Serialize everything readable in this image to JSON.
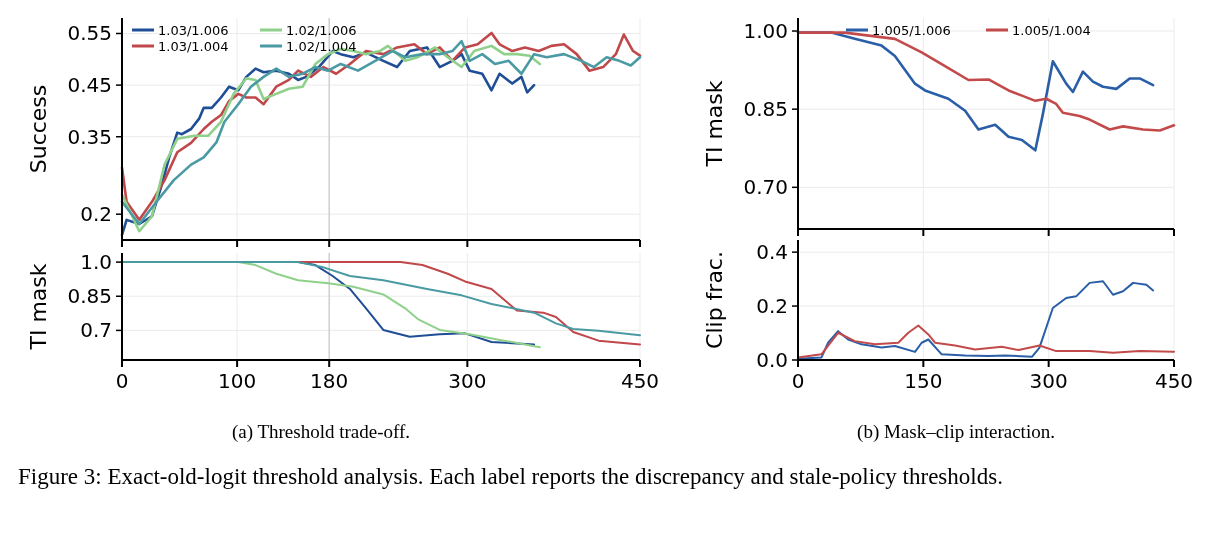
{
  "chart_data": [
    {
      "type": "line",
      "ylabel": "Success",
      "xlim": [
        0,
        450
      ],
      "xticks": [
        0,
        100,
        180,
        300,
        450
      ],
      "ylim": [
        0.15,
        0.58
      ],
      "yticks": [
        0.2,
        0.35,
        0.45,
        0.55
      ],
      "grid": true,
      "legend": "top left",
      "tick_labels": "y",
      "ref_lines": [
        {
          "axis": "x",
          "value": 180,
          "color": "#c8c8c8"
        }
      ],
      "series": [
        {
          "name": "1.03/1.006",
          "color": "#1f4e96",
          "x": [
            0,
            4,
            15,
            26,
            34,
            41,
            48,
            52,
            60,
            67,
            71,
            78,
            86,
            93,
            101,
            108,
            116,
            123,
            134,
            145,
            153,
            160,
            171,
            183,
            190,
            201,
            212,
            227,
            239,
            250,
            265,
            276,
            287,
            295,
            302,
            313,
            321,
            328,
            339,
            347,
            352,
            358
          ],
          "values": [
            0.16,
            0.189,
            0.181,
            0.196,
            0.253,
            0.31,
            0.358,
            0.355,
            0.365,
            0.385,
            0.406,
            0.406,
            0.426,
            0.447,
            0.44,
            0.466,
            0.482,
            0.475,
            0.478,
            0.472,
            0.46,
            0.466,
            0.485,
            0.516,
            0.51,
            0.504,
            0.513,
            0.497,
            0.485,
            0.516,
            0.523,
            0.485,
            0.497,
            0.51,
            0.478,
            0.472,
            0.44,
            0.472,
            0.453,
            0.466,
            0.436,
            0.45
          ]
        },
        {
          "name": "1.03/1.004",
          "color": "#c0474a",
          "x": [
            0,
            4,
            15,
            26,
            37,
            48,
            60,
            71,
            78,
            86,
            93,
            101,
            108,
            116,
            123,
            134,
            145,
            153,
            164,
            175,
            186,
            198,
            212,
            227,
            239,
            254,
            265,
            276,
            287,
            298,
            309,
            321,
            328,
            339,
            350,
            362,
            373,
            384,
            395,
            406,
            418,
            429,
            436,
            444,
            450
          ],
          "values": [
            0.29,
            0.224,
            0.189,
            0.224,
            0.266,
            0.32,
            0.338,
            0.365,
            0.379,
            0.392,
            0.419,
            0.433,
            0.426,
            0.426,
            0.413,
            0.447,
            0.46,
            0.478,
            0.466,
            0.485,
            0.472,
            0.491,
            0.516,
            0.51,
            0.523,
            0.529,
            0.51,
            0.523,
            0.497,
            0.523,
            0.529,
            0.551,
            0.529,
            0.516,
            0.523,
            0.516,
            0.526,
            0.529,
            0.51,
            0.478,
            0.485,
            0.51,
            0.548,
            0.516,
            0.507
          ]
        },
        {
          "name": "1.02/1.006",
          "color": "#8fd18a",
          "x": [
            0,
            15,
            26,
            37,
            48,
            63,
            75,
            86,
            97,
            108,
            116,
            123,
            134,
            145,
            157,
            168,
            179,
            190,
            201,
            212,
            224,
            231,
            246,
            257,
            272,
            283,
            295,
            306,
            321,
            332,
            343,
            354,
            363
          ],
          "values": [
            0.238,
            0.167,
            0.196,
            0.296,
            0.346,
            0.352,
            0.352,
            0.379,
            0.433,
            0.463,
            0.46,
            0.423,
            0.433,
            0.443,
            0.447,
            0.491,
            0.51,
            0.52,
            0.516,
            0.51,
            0.516,
            0.526,
            0.497,
            0.504,
            0.523,
            0.504,
            0.485,
            0.516,
            0.526,
            0.51,
            0.51,
            0.507,
            0.491
          ]
        },
        {
          "name": "1.02/1.004",
          "color": "#4a9aa3",
          "x": [
            0,
            15,
            30,
            45,
            60,
            71,
            82,
            89,
            101,
            112,
            123,
            134,
            145,
            157,
            168,
            179,
            190,
            205,
            220,
            235,
            246,
            261,
            276,
            287,
            295,
            302,
            313,
            324,
            336,
            347,
            358,
            369,
            384,
            399,
            410,
            421,
            432,
            442,
            450
          ],
          "values": [
            0.224,
            0.181,
            0.224,
            0.266,
            0.296,
            0.31,
            0.339,
            0.379,
            0.413,
            0.447,
            0.466,
            0.482,
            0.466,
            0.472,
            0.485,
            0.478,
            0.491,
            0.478,
            0.497,
            0.516,
            0.504,
            0.51,
            0.51,
            0.516,
            0.535,
            0.497,
            0.51,
            0.491,
            0.497,
            0.472,
            0.51,
            0.504,
            0.51,
            0.497,
            0.485,
            0.504,
            0.497,
            0.488,
            0.504
          ]
        }
      ]
    },
    {
      "type": "line",
      "ylabel": "TI mask",
      "xlim": [
        0,
        450
      ],
      "xticks": [
        0,
        100,
        180,
        300,
        450
      ],
      "ylim": [
        0.57,
        1.04
      ],
      "yticks": [
        {
          "value": 1.0,
          "label": "1.0"
        },
        0.85,
        0.7
      ],
      "grid": true,
      "ref_lines": [
        {
          "axis": "x",
          "value": 180,
          "color": "#c8c8c8"
        }
      ],
      "annotations": [
        "(a) Threshold trade-off."
      ],
      "series": [
        {
          "color": "#1f4e96",
          "x": [
            0,
            153,
            168,
            183,
            198,
            212,
            227,
            250,
            276,
            298,
            321,
            358
          ],
          "values": [
            1.0,
            1.0,
            0.987,
            0.939,
            0.882,
            0.797,
            0.702,
            0.672,
            0.683,
            0.687,
            0.649,
            0.638
          ]
        },
        {
          "color": "#c0474a",
          "x": [
            0,
            242,
            261,
            283,
            298,
            321,
            332,
            343,
            366,
            377,
            392,
            414,
            450
          ],
          "values": [
            1.0,
            1.0,
            0.987,
            0.949,
            0.915,
            0.882,
            0.835,
            0.787,
            0.778,
            0.759,
            0.693,
            0.655,
            0.638
          ]
        },
        {
          "color": "#8fd18a",
          "x": [
            0,
            101,
            116,
            134,
            153,
            179,
            201,
            227,
            246,
            257,
            276,
            302,
            332,
            363
          ],
          "values": [
            1.0,
            1.0,
            0.987,
            0.949,
            0.92,
            0.907,
            0.892,
            0.858,
            0.797,
            0.75,
            0.702,
            0.683,
            0.655,
            0.626
          ]
        },
        {
          "color": "#4a9aa3",
          "x": [
            0,
            153,
            175,
            198,
            227,
            265,
            295,
            321,
            358,
            377,
            392,
            414,
            450
          ],
          "values": [
            1.0,
            1.0,
            0.977,
            0.939,
            0.92,
            0.882,
            0.854,
            0.816,
            0.778,
            0.731,
            0.706,
            0.698,
            0.679
          ]
        }
      ]
    },
    {
      "type": "line",
      "ylabel": "TI mask",
      "xlim": [
        0,
        450
      ],
      "xticks": [
        0,
        150,
        300,
        450
      ],
      "ylim": [
        0.62,
        1.025
      ],
      "yticks": [
        {
          "value": 1.0,
          "label": "1.00"
        },
        0.85,
        {
          "value": 0.7,
          "label": "0.70"
        }
      ],
      "grid": true,
      "legend": "top",
      "tick_labels": "y",
      "series": [
        {
          "name": "1.005/1.006",
          "color": "#2a5fa8",
          "x": [
            0,
            40,
            68,
            100,
            116,
            140,
            152,
            180,
            200,
            216,
            236,
            252,
            268,
            284,
            293,
            305,
            321,
            329,
            341,
            353,
            365,
            381,
            397,
            409,
            425
          ],
          "values": [
            0.997,
            0.997,
            0.985,
            0.972,
            0.952,
            0.899,
            0.886,
            0.87,
            0.847,
            0.811,
            0.82,
            0.797,
            0.791,
            0.771,
            0.84,
            0.942,
            0.899,
            0.883,
            0.922,
            0.903,
            0.893,
            0.889,
            0.909,
            0.909,
            0.896
          ]
        },
        {
          "name": "1.005/1.004",
          "color": "#c34a4a",
          "x": [
            0,
            56,
            116,
            148,
            180,
            204,
            228,
            252,
            268,
            284,
            297,
            309,
            317,
            337,
            349,
            373,
            389,
            413,
            433,
            450
          ],
          "values": [
            0.997,
            0.997,
            0.985,
            0.959,
            0.929,
            0.906,
            0.907,
            0.886,
            0.876,
            0.866,
            0.87,
            0.86,
            0.843,
            0.837,
            0.83,
            0.811,
            0.817,
            0.811,
            0.809,
            0.819
          ]
        }
      ]
    },
    {
      "type": "line",
      "ylabel": "Clip frac.",
      "xlim": [
        0,
        450
      ],
      "xticks": [
        0,
        150,
        300,
        450
      ],
      "ylim": [
        0,
        0.445
      ],
      "yticks": [
        {
          "value": 0,
          "label": "0.0"
        },
        0.2,
        0.4
      ],
      "grid": true,
      "annotations": [
        "(b) Mask–clip interaction.",
        "Figure 3: Exact-old-logit threshold analysis. Each label reports the discrepancy and stale-policy thresholds."
      ],
      "series": [
        {
          "color": "#2a5fa8",
          "x": [
            0,
            28,
            36,
            48,
            60,
            76,
            100,
            116,
            140,
            148,
            156,
            172,
            200,
            228,
            248,
            280,
            289,
            305,
            321,
            333,
            349,
            365,
            377,
            389,
            401,
            417,
            425
          ],
          "values": [
            0.005,
            0.009,
            0.064,
            0.107,
            0.076,
            0.058,
            0.046,
            0.052,
            0.03,
            0.064,
            0.076,
            0.021,
            0.017,
            0.015,
            0.017,
            0.012,
            0.046,
            0.193,
            0.23,
            0.236,
            0.286,
            0.292,
            0.242,
            0.255,
            0.286,
            0.279,
            0.258
          ]
        },
        {
          "color": "#c34a4a",
          "x": [
            0,
            28,
            48,
            68,
            92,
            120,
            132,
            144,
            156,
            164,
            188,
            212,
            244,
            264,
            289,
            309,
            349,
            377,
            409,
            450
          ],
          "values": [
            0.009,
            0.021,
            0.101,
            0.07,
            0.058,
            0.064,
            0.101,
            0.128,
            0.095,
            0.064,
            0.054,
            0.039,
            0.049,
            0.037,
            0.054,
            0.033,
            0.033,
            0.027,
            0.033,
            0.031
          ]
        }
      ]
    }
  ]
}
